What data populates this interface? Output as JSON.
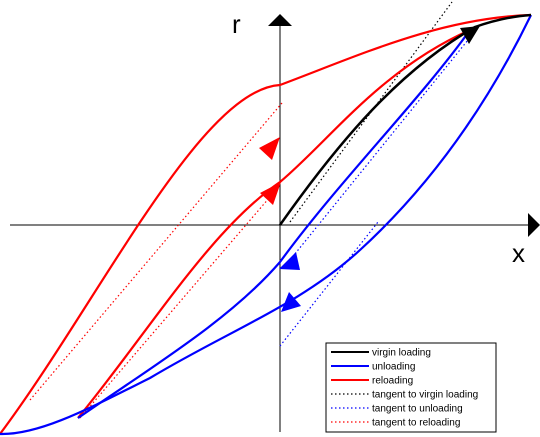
{
  "axes": {
    "x_label": "x",
    "y_label": "r"
  },
  "colors": {
    "virgin_loading": "#000000",
    "unloading": "#0000ff",
    "reloading": "#ff0000",
    "axis": "#000000"
  },
  "legend": {
    "items": [
      {
        "label": "virgin loading",
        "style": "solid",
        "color": "#000000"
      },
      {
        "label": "unloading",
        "style": "solid",
        "color": "#0000ff"
      },
      {
        "label": "reloading",
        "style": "solid",
        "color": "#ff0000"
      },
      {
        "label": "tangent to virgin loading",
        "style": "dotted",
        "color": "#000000"
      },
      {
        "label": "tangent to unloading",
        "style": "dotted",
        "color": "#0000ff"
      },
      {
        "label": "tangent to reloading",
        "style": "dotted",
        "color": "#ff0000"
      }
    ]
  }
}
